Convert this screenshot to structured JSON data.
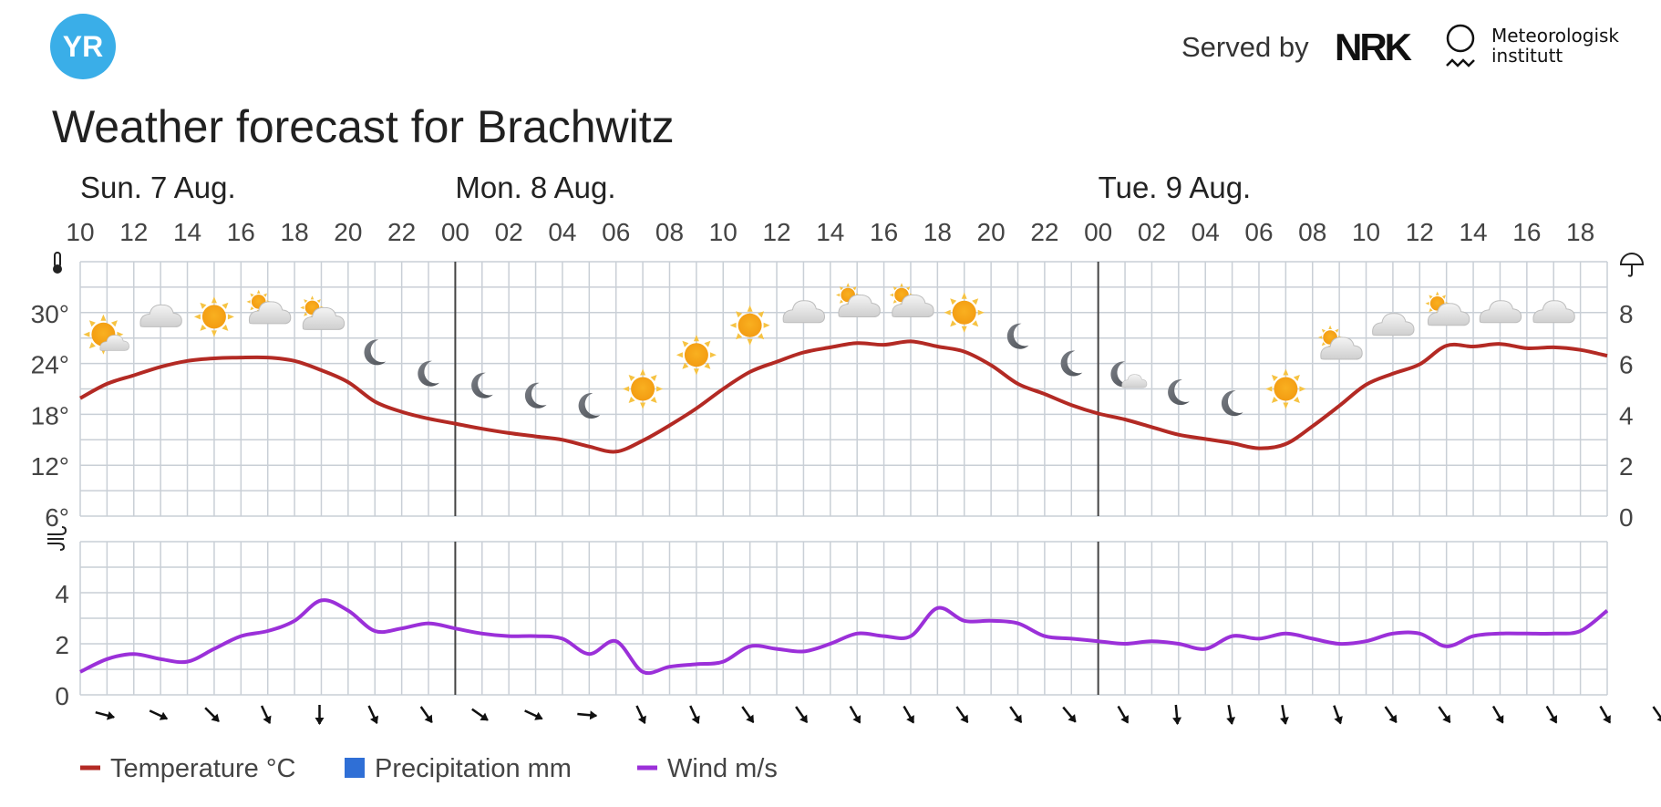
{
  "header": {
    "logo_text": "YR",
    "served_by": "Served by",
    "nrk_logo": "NRK",
    "met_line1": "Meteorologisk",
    "met_line2": "institutt"
  },
  "title": "Weather forecast for Brachwitz",
  "colors": {
    "temperature": "#b32a24",
    "wind": "#9b30d9",
    "precipitation": "#2f6fd6",
    "grid": "#c9cfd6",
    "day_divider": "#444444",
    "yr_blue": "#3aaee8"
  },
  "chart_data": {
    "type": "line",
    "days": [
      {
        "label": "Sun. 7 Aug.",
        "start_hour_index": 0
      },
      {
        "label": "Mon. 8 Aug.",
        "start_hour_index": 14
      },
      {
        "label": "Tue. 9 Aug.",
        "start_hour_index": 38
      }
    ],
    "x_tick_labels": [
      "10",
      "12",
      "14",
      "16",
      "18",
      "20",
      "22",
      "00",
      "02",
      "04",
      "06",
      "08",
      "10",
      "12",
      "14",
      "16",
      "18",
      "20",
      "22",
      "00",
      "02",
      "04",
      "06",
      "08",
      "10",
      "12",
      "14",
      "16",
      "18"
    ],
    "temperature": {
      "name": "Temperature °C",
      "unit": "°C",
      "ylim": [
        6,
        36
      ],
      "yticks": [
        "6°",
        "12°",
        "18°",
        "24°",
        "30°"
      ],
      "values": [
        19.9,
        21.6,
        22.6,
        23.6,
        24.3,
        24.6,
        24.7,
        24.7,
        24.3,
        23.2,
        21.8,
        19.5,
        18.3,
        17.5,
        16.9,
        16.3,
        15.8,
        15.4,
        15,
        14.2,
        13.6,
        14.9,
        16.7,
        18.7,
        21,
        23,
        24.2,
        25.3,
        25.9,
        26.4,
        26.2,
        26.6,
        26,
        25.4,
        23.8,
        21.6,
        20.4,
        19.1,
        18.1,
        17.4,
        16.5,
        15.6,
        15.1,
        14.6,
        14,
        14.5,
        16.6,
        19,
        21.5,
        22.8,
        23.9,
        26.1,
        26,
        26.3,
        25.8,
        25.9,
        25.6,
        24.9
      ]
    },
    "precipitation": {
      "name": "Precipitation mm",
      "unit": "mm",
      "ylim": [
        0,
        10
      ],
      "yticks": [
        "0",
        "2",
        "4",
        "6",
        "8"
      ],
      "values": []
    },
    "wind": {
      "name": "Wind m/s",
      "unit": "m/s",
      "ylim": [
        0,
        6
      ],
      "yticks": [
        "0",
        "2",
        "4"
      ],
      "values": [
        0.9,
        1.4,
        1.6,
        1.4,
        1.3,
        1.8,
        2.3,
        2.5,
        2.9,
        3.7,
        3.3,
        2.5,
        2.6,
        2.8,
        2.6,
        2.4,
        2.3,
        2.3,
        2.2,
        1.6,
        2.1,
        0.9,
        1.1,
        1.2,
        1.3,
        1.9,
        1.8,
        1.7,
        2,
        2.4,
        2.3,
        2.3,
        3.4,
        2.9,
        2.9,
        2.8,
        2.3,
        2.2,
        2.1,
        2,
        2.1,
        2,
        1.8,
        2.3,
        2.2,
        2.4,
        2.2,
        2,
        2.1,
        2.4,
        2.4,
        1.9,
        2.3,
        2.4,
        2.4,
        2.4,
        2.5,
        3.3
      ],
      "direction_arrows_deg": [
        105,
        115,
        135,
        155,
        180,
        155,
        145,
        125,
        115,
        95,
        155,
        155,
        145,
        145,
        150,
        150,
        145,
        145,
        140,
        150,
        175,
        170,
        170,
        160,
        145,
        145,
        150,
        150,
        150,
        145
      ]
    },
    "weather_symbols": [
      {
        "hour_index": 1,
        "temp_level": 27,
        "icon": "partly-cloudy-sun-icon"
      },
      {
        "hour_index": 3,
        "temp_level": 29.5,
        "icon": "cloud-icon"
      },
      {
        "hour_index": 5,
        "temp_level": 29.5,
        "icon": "sun-icon"
      },
      {
        "hour_index": 7,
        "temp_level": 30.2,
        "icon": "cloudy-small-sun-icon"
      },
      {
        "hour_index": 9,
        "temp_level": 29.5,
        "icon": "cloudy-small-sun-icon"
      },
      {
        "hour_index": 11,
        "temp_level": 25.3,
        "icon": "moon-icon"
      },
      {
        "hour_index": 13,
        "temp_level": 22.8,
        "icon": "moon-icon"
      },
      {
        "hour_index": 15,
        "temp_level": 21.4,
        "icon": "moon-icon"
      },
      {
        "hour_index": 17,
        "temp_level": 20.2,
        "icon": "moon-icon"
      },
      {
        "hour_index": 19,
        "temp_level": 19.0,
        "icon": "moon-icon"
      },
      {
        "hour_index": 21,
        "temp_level": 21.0,
        "icon": "sun-icon"
      },
      {
        "hour_index": 23,
        "temp_level": 25.0,
        "icon": "sun-icon"
      },
      {
        "hour_index": 25,
        "temp_level": 28.5,
        "icon": "sun-icon"
      },
      {
        "hour_index": 27,
        "temp_level": 30.0,
        "icon": "cloud-icon"
      },
      {
        "hour_index": 29,
        "temp_level": 31.0,
        "icon": "cloudy-small-sun-icon"
      },
      {
        "hour_index": 31,
        "temp_level": 31.0,
        "icon": "cloudy-small-sun-icon"
      },
      {
        "hour_index": 33,
        "temp_level": 30.0,
        "icon": "sun-icon"
      },
      {
        "hour_index": 35,
        "temp_level": 27.2,
        "icon": "moon-icon"
      },
      {
        "hour_index": 37,
        "temp_level": 24.0,
        "icon": "moon-icon"
      },
      {
        "hour_index": 39,
        "temp_level": 22.5,
        "icon": "partly-cloudy-moon-icon"
      },
      {
        "hour_index": 41,
        "temp_level": 20.6,
        "icon": "moon-icon"
      },
      {
        "hour_index": 43,
        "temp_level": 19.3,
        "icon": "moon-icon"
      },
      {
        "hour_index": 45,
        "temp_level": 21.0,
        "icon": "sun-icon"
      },
      {
        "hour_index": 47,
        "temp_level": 26.0,
        "icon": "cloudy-small-sun-icon"
      },
      {
        "hour_index": 49,
        "temp_level": 28.5,
        "icon": "cloud-icon"
      },
      {
        "hour_index": 51,
        "temp_level": 30.0,
        "icon": "cloudy-small-sun-icon"
      },
      {
        "hour_index": 53,
        "temp_level": 30.0,
        "icon": "cloud-icon"
      },
      {
        "hour_index": 55,
        "temp_level": 30.0,
        "icon": "cloud-icon"
      }
    ],
    "legend": [
      {
        "label": "Temperature °C",
        "color_key": "temperature",
        "shape": "line"
      },
      {
        "label": "Precipitation mm",
        "color_key": "precipitation",
        "shape": "square"
      },
      {
        "label": "Wind m/s",
        "color_key": "wind",
        "shape": "line"
      }
    ]
  }
}
